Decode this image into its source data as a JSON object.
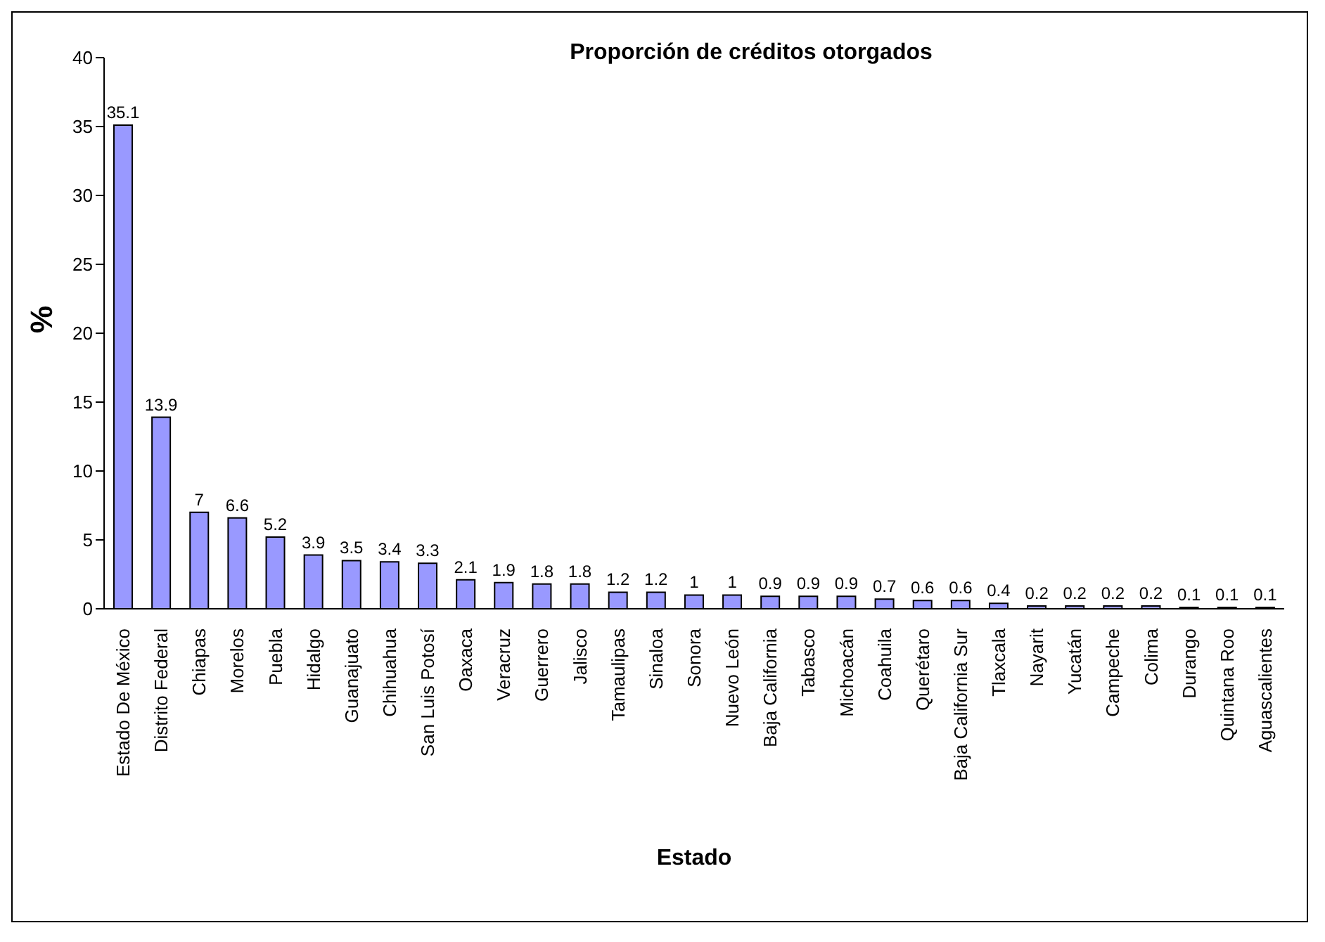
{
  "chart_data": {
    "type": "bar",
    "title": "Proporción de créditos otorgados",
    "xlabel": "Estado",
    "ylabel": "%",
    "categories": [
      "Estado De México",
      "Distrito Federal",
      "Chiapas",
      "Morelos",
      "Puebla",
      "Hidalgo",
      "Guanajuato",
      "Chihuahua",
      "San Luis Potosí",
      "Oaxaca",
      "Veracruz",
      "Guerrero",
      "Jalisco",
      "Tamaulipas",
      "Sinaloa",
      "Sonora",
      "Nuevo León",
      "Baja California",
      "Tabasco",
      "Michoacán",
      "Coahuila",
      "Querétaro",
      "Baja California Sur",
      "Tlaxcala",
      "Nayarit",
      "Yucatán",
      "Campeche",
      "Colima",
      "Durango",
      "Quintana Roo",
      "Aguascalientes"
    ],
    "values": [
      35.1,
      13.9,
      7,
      6.6,
      5.2,
      3.9,
      3.5,
      3.4,
      3.3,
      2.1,
      1.9,
      1.8,
      1.8,
      1.2,
      1.2,
      1,
      1,
      0.9,
      0.9,
      0.9,
      0.7,
      0.6,
      0.6,
      0.4,
      0.2,
      0.2,
      0.2,
      0.2,
      0.1,
      0.1,
      0.1
    ],
    "color": "#9999ff",
    "ylim": [
      0,
      40
    ],
    "yticks": [
      0,
      5,
      10,
      15,
      20,
      25,
      30,
      35,
      40
    ],
    "data_labels": true,
    "grid": false
  }
}
